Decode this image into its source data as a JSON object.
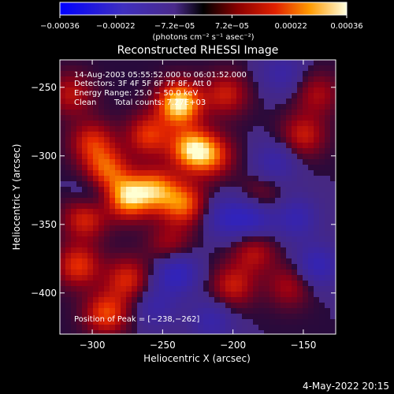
{
  "chart_data": {
    "type": "heatmap",
    "title": "Reconstructed RHESSI Image",
    "xlabel": "Heliocentric X (arcsec)",
    "ylabel": "Heliocentric Y (arcsec)",
    "xlim": [
      -323,
      -127
    ],
    "ylim": [
      -430,
      -230
    ],
    "x_ticks": [
      -300,
      -250,
      -200,
      -150
    ],
    "y_ticks": [
      -400,
      -350,
      -300,
      -250
    ],
    "x_tick_labels": [
      "−300",
      "−250",
      "−200",
      "−150"
    ],
    "y_tick_labels": [
      "−400",
      "−350",
      "−300",
      "−250"
    ],
    "colorbar": {
      "range": [
        -0.00036,
        0.00036
      ],
      "ticks": [
        -0.00036,
        -0.00022,
        -7.2e-05,
        7.2e-05,
        0.00022,
        0.00036
      ],
      "tick_labels": [
        "−0.00036",
        "−0.00022",
        "−7.2e−05",
        "7.2e−05",
        "0.00022",
        "0.00036"
      ],
      "unit_label": "(photons cm⁻² s⁻¹ asec⁻²)"
    },
    "annotations": {
      "time_range": "14‑Aug‑2003 05:55:52.000 to 06:01:52.000",
      "detectors": "Detectors: 3F 4F 5F 6F 7F 8F, Att 0",
      "energy": "Energy Range: 25.0 − 50.0 keV",
      "method": "Clean",
      "counts": "Total counts: 7.27E+03",
      "peak": "Position of Peak = [−238,−262]"
    },
    "footer_date": "4‑May‑2022 20:15",
    "peak_position": [
      -238,
      -262
    ],
    "blobs": [
      {
        "x": -238,
        "y": -262,
        "v": 1.0
      },
      {
        "x": -275,
        "y": -330,
        "v": 0.85
      },
      {
        "x": -255,
        "y": -325,
        "v": 0.7
      },
      {
        "x": -230,
        "y": -295,
        "v": 0.8
      },
      {
        "x": -215,
        "y": -300,
        "v": 0.55
      },
      {
        "x": -290,
        "y": -310,
        "v": 0.6
      },
      {
        "x": -300,
        "y": -290,
        "v": 0.5
      },
      {
        "x": -235,
        "y": -335,
        "v": 0.65
      },
      {
        "x": -305,
        "y": -345,
        "v": 0.55
      },
      {
        "x": -310,
        "y": -380,
        "v": 0.55
      },
      {
        "x": -290,
        "y": -415,
        "v": 0.6
      },
      {
        "x": -275,
        "y": -390,
        "v": 0.5
      },
      {
        "x": -200,
        "y": -395,
        "v": 0.45
      },
      {
        "x": -185,
        "y": -370,
        "v": 0.4
      },
      {
        "x": -150,
        "y": -285,
        "v": 0.45
      },
      {
        "x": -140,
        "y": -255,
        "v": 0.35
      },
      {
        "x": -160,
        "y": -395,
        "v": 0.35
      },
      {
        "x": -260,
        "y": -285,
        "v": 0.55
      },
      {
        "x": -315,
        "y": -255,
        "v": 0.4
      },
      {
        "x": -205,
        "y": -255,
        "v": 0.45
      },
      {
        "x": -180,
        "y": -330,
        "v": 0.3
      },
      {
        "x": -245,
        "y": -365,
        "v": 0.35
      },
      {
        "x": -215,
        "y": -420,
        "v": -0.35
      },
      {
        "x": -240,
        "y": -385,
        "v": -0.55
      },
      {
        "x": -185,
        "y": -345,
        "v": -0.5
      },
      {
        "x": -155,
        "y": -345,
        "v": -0.4
      },
      {
        "x": -170,
        "y": -305,
        "v": -0.35
      },
      {
        "x": -205,
        "y": -345,
        "v": -0.4
      },
      {
        "x": -140,
        "y": -380,
        "v": -0.45
      },
      {
        "x": -165,
        "y": -240,
        "v": -0.3
      },
      {
        "x": -300,
        "y": -330,
        "v": -0.25
      },
      {
        "x": -255,
        "y": -410,
        "v": -0.3
      }
    ]
  }
}
